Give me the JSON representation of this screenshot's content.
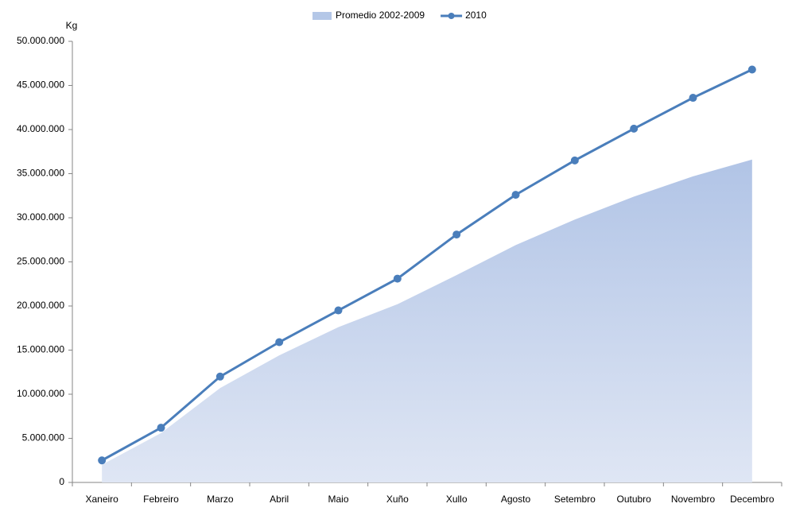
{
  "chart_data": {
    "type": "area-line",
    "y_label": "Kg",
    "categories": [
      "Xaneiro",
      "Febreiro",
      "Marzo",
      "Abril",
      "Maio",
      "Xuño",
      "Xullo",
      "Agosto",
      "Setembro",
      "Outubro",
      "Novembro",
      "Decembro"
    ],
    "series": [
      {
        "name": "Promedio 2002-2009",
        "kind": "area",
        "color": "#b4c7e7",
        "values": [
          2000000,
          5600000,
          10700000,
          14400000,
          17600000,
          20200000,
          23500000,
          26900000,
          29800000,
          32400000,
          34700000,
          36600000
        ]
      },
      {
        "name": "2010",
        "kind": "line",
        "color": "#4a7ebb",
        "values": [
          2500000,
          6200000,
          12000000,
          15900000,
          19500000,
          23100000,
          28100000,
          32600000,
          36500000,
          40100000,
          43600000,
          46800000
        ]
      }
    ],
    "ylim": [
      0,
      50000000
    ],
    "yticks": [
      0,
      {
        "value": 5000000,
        "label": "5.000.000"
      },
      {
        "value": 10000000,
        "label": "10.000.000"
      },
      {
        "value": 15000000,
        "label": "15.000.000"
      },
      {
        "value": 20000000,
        "label": "20.000.000"
      },
      {
        "value": 25000000,
        "label": "25.000.000"
      },
      {
        "value": 30000000,
        "label": "30.000.000"
      },
      {
        "value": 35000000,
        "label": "35.000.000"
      },
      {
        "value": 40000000,
        "label": "40.000.000"
      },
      {
        "value": 45000000,
        "label": "45.000.000"
      },
      {
        "value": 50000000,
        "label": "50.000.000"
      }
    ],
    "grid": false,
    "legend": "top"
  }
}
